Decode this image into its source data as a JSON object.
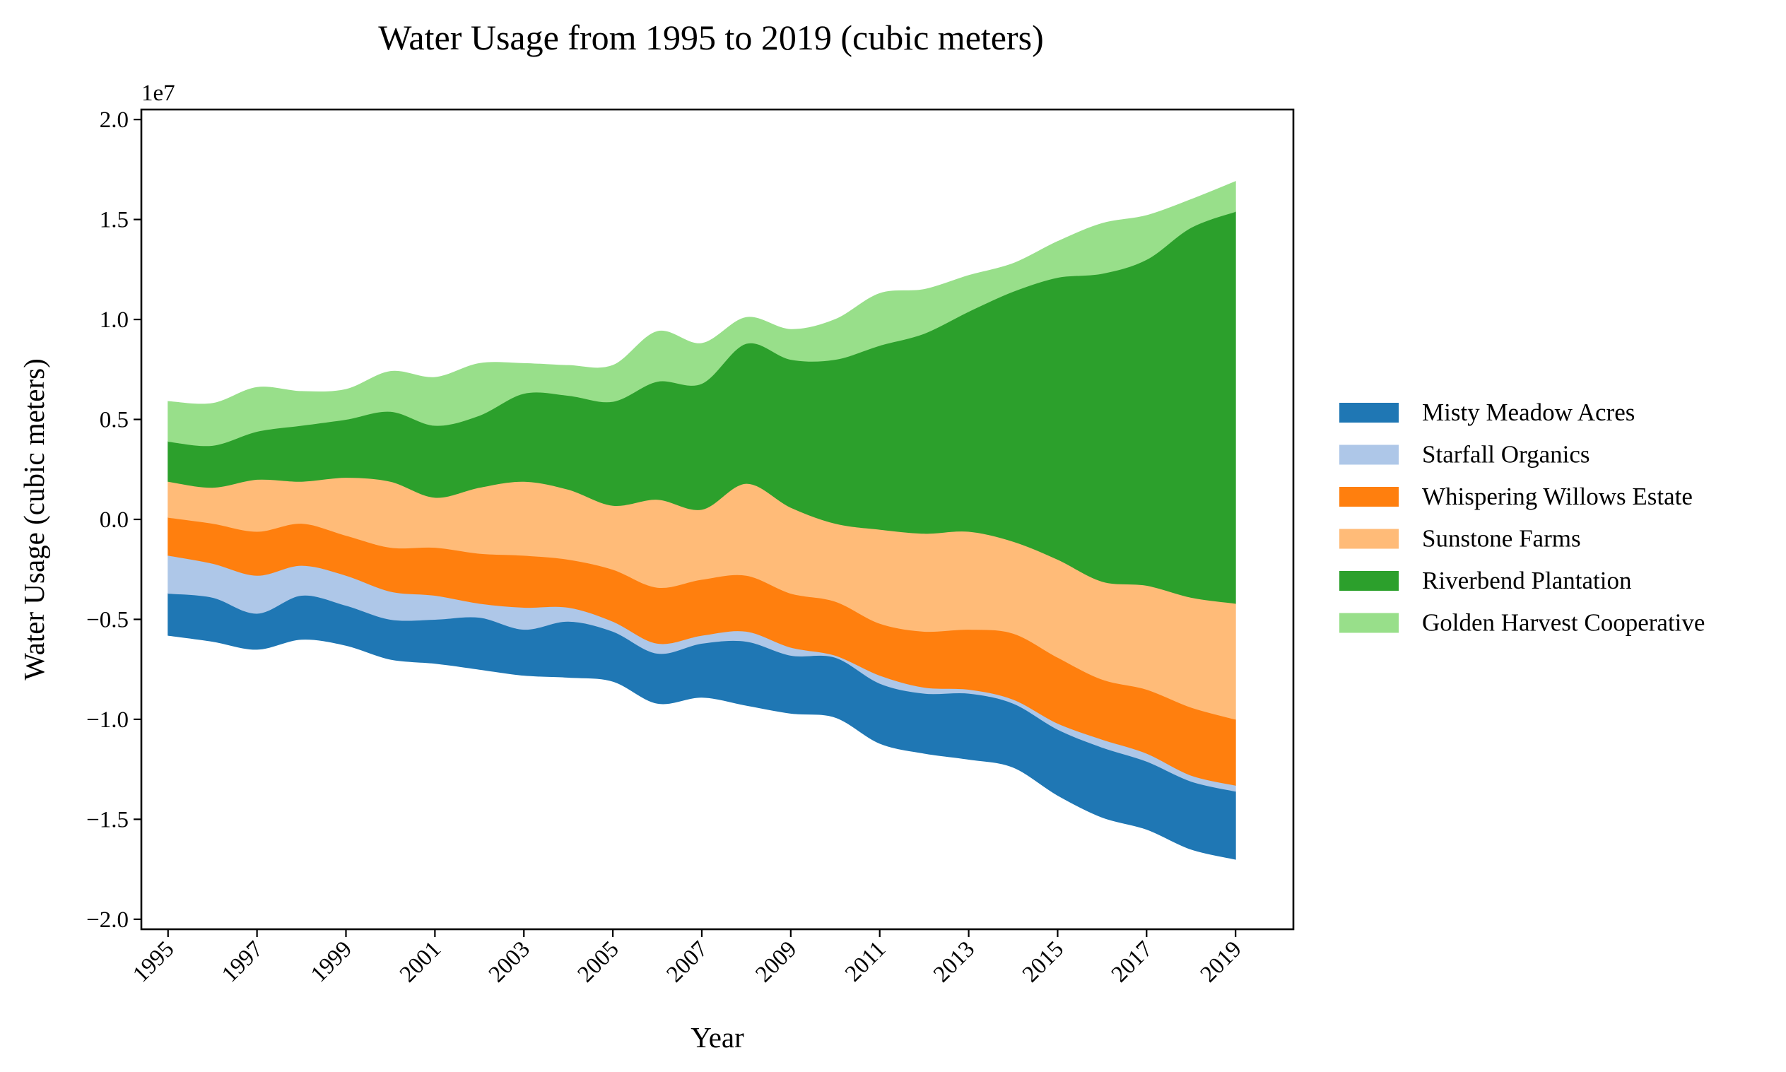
{
  "chart_data": {
    "type": "area",
    "subtype": "streamgraph",
    "title": "Water Usage from 1995 to 2019 (cubic meters)",
    "xlabel": "Year",
    "ylabel": "Water Usage (cubic meters)",
    "y_offset_label": "1e7",
    "xlim": [
      1994.4,
      2020.3
    ],
    "ylim": [
      -20500000,
      20500000
    ],
    "x": [
      1995,
      1996,
      1997,
      1998,
      1999,
      2000,
      2001,
      2002,
      2003,
      2004,
      2005,
      2006,
      2007,
      2008,
      2009,
      2010,
      2011,
      2012,
      2013,
      2014,
      2015,
      2016,
      2017,
      2018,
      2019
    ],
    "x_ticks": [
      1995,
      1997,
      1999,
      2001,
      2003,
      2005,
      2007,
      2009,
      2011,
      2013,
      2015,
      2017,
      2019
    ],
    "x_tick_labels": [
      "1995",
      "1997",
      "1999",
      "2001",
      "2003",
      "2005",
      "2007",
      "2009",
      "2011",
      "2013",
      "2015",
      "2017",
      "2019"
    ],
    "y_ticks": [
      -20000000,
      -15000000,
      -10000000,
      -5000000,
      0,
      5000000,
      10000000,
      15000000,
      20000000
    ],
    "y_tick_labels": [
      "−2.0",
      "−1.5",
      "−1.0",
      "−0.5",
      "0.0",
      "0.5",
      "1.0",
      "1.5",
      "2.0"
    ],
    "baseline": [
      -5800000,
      -6100000,
      -6500000,
      -6000000,
      -6300000,
      -7000000,
      -7200000,
      -7500000,
      -7800000,
      -7900000,
      -8100000,
      -9200000,
      -8900000,
      -9300000,
      -9700000,
      -9900000,
      -11200000,
      -11700000,
      -12000000,
      -12400000,
      -13800000,
      -14900000,
      -15500000,
      -16500000,
      -17000000
    ],
    "series": [
      {
        "name": "Misty Meadow Acres",
        "color": "#1f77b4",
        "values": [
          2100000,
          2200000,
          1800000,
          2200000,
          2000000,
          2000000,
          2200000,
          2600000,
          2300000,
          2800000,
          2500000,
          2500000,
          2700000,
          3200000,
          2900000,
          3000000,
          3000000,
          3000000,
          3300000,
          3200000,
          3300000,
          3500000,
          3400000,
          3400000,
          3400000
        ]
      },
      {
        "name": "Starfall Organics",
        "color": "#aec7e8",
        "values": [
          1900000,
          1700000,
          1900000,
          1500000,
          1500000,
          1400000,
          1200000,
          700000,
          1100000,
          700000,
          500000,
          500000,
          400000,
          500000,
          400000,
          100000,
          400000,
          300000,
          200000,
          200000,
          300000,
          400000,
          400000,
          300000,
          300000
        ]
      },
      {
        "name": "Whispering Willows Estate",
        "color": "#ff7f0e",
        "values": [
          1900000,
          2000000,
          2200000,
          2100000,
          2000000,
          2200000,
          2400000,
          2500000,
          2600000,
          2400000,
          2600000,
          2800000,
          2800000,
          2800000,
          2700000,
          2700000,
          2600000,
          2800000,
          3000000,
          3300000,
          3300000,
          3000000,
          3200000,
          3400000,
          3300000
        ]
      },
      {
        "name": "Sunstone Farms",
        "color": "#ffbb78",
        "values": [
          1800000,
          1800000,
          2600000,
          2100000,
          2900000,
          3300000,
          2500000,
          3300000,
          3700000,
          3500000,
          3200000,
          4400000,
          3500000,
          4600000,
          4300000,
          3900000,
          4700000,
          4900000,
          4900000,
          4600000,
          4900000,
          4900000,
          5200000,
          5500000,
          5800000
        ]
      },
      {
        "name": "Riverbend Plantation",
        "color": "#2ca02c",
        "values": [
          2000000,
          2100000,
          2400000,
          2800000,
          2900000,
          3500000,
          3600000,
          3600000,
          4400000,
          4700000,
          5200000,
          5900000,
          6300000,
          7000000,
          7400000,
          8200000,
          9200000,
          10000000,
          11000000,
          12500000,
          14100000,
          15400000,
          16300000,
          18500000,
          19600000
        ]
      },
      {
        "name": "Golden Harvest Cooperative",
        "color": "#98df8a",
        "values": [
          2000000,
          2100000,
          2200000,
          1700000,
          1500000,
          2000000,
          2400000,
          2600000,
          1500000,
          1500000,
          1800000,
          2500000,
          2000000,
          1300000,
          1500000,
          2000000,
          2600000,
          2200000,
          1800000,
          1400000,
          1800000,
          2500000,
          2200000,
          1400000,
          1500000
        ]
      }
    ],
    "legend": {
      "placement": "right-center-outside"
    },
    "grid": false
  }
}
